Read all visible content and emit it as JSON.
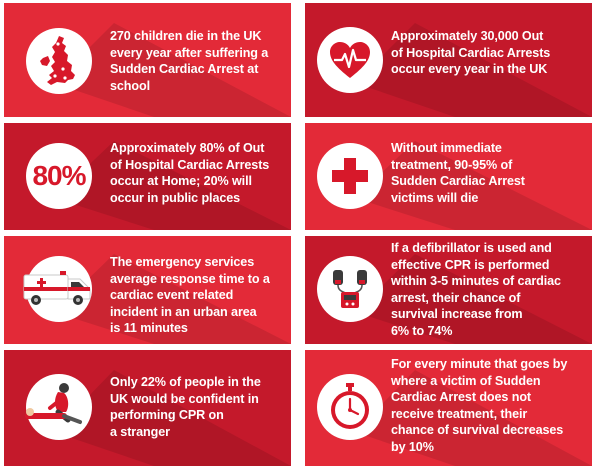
{
  "facts": [
    {
      "icon": "uk-map-icon",
      "text": "270 children die in the UK\nevery year after suffering a\nSudden Cardiac Arrest at\nschool"
    },
    {
      "icon": "heart-pulse-icon",
      "text": "Approximately 30,000 Out\nof Hospital Cardiac Arrests\noccur every year in the UK"
    },
    {
      "icon": "percent-80-icon",
      "stat": "80%",
      "text": "Approximately 80% of Out\nof Hospital Cardiac Arrests\noccur at Home; 20% will\noccur in public places"
    },
    {
      "icon": "medical-cross-icon",
      "text": "Without immediate\ntreatment, 90-95% of\nSudden Cardiac Arrest\nvictims will die"
    },
    {
      "icon": "ambulance-icon",
      "text": "The emergency services\naverage response time to a\ncardiac event related\nincident in an urban area\nis 11 minutes"
    },
    {
      "icon": "defibrillator-icon",
      "text": "If a defibrillator is used and\neffective CPR is performed\nwithin 3-5 minutes of cardiac\narrest, their chance of\n survival  increase from\n6% to 74%"
    },
    {
      "icon": "cpr-person-icon",
      "text": "Only 22% of people in the\nUK would be confident in\nperforming CPR on\na stranger"
    },
    {
      "icon": "stopwatch-icon",
      "text": "For every minute that goes by\nwhere a victim of Sudden\nCardiac Arrest does not\nreceive treatment, their\nchance of survival decreases\nby 10%"
    }
  ],
  "colors": {
    "card": "#e32a38",
    "card_alt": "#c4192b",
    "icon_red": "#d7182a",
    "text": "#ffffff"
  }
}
